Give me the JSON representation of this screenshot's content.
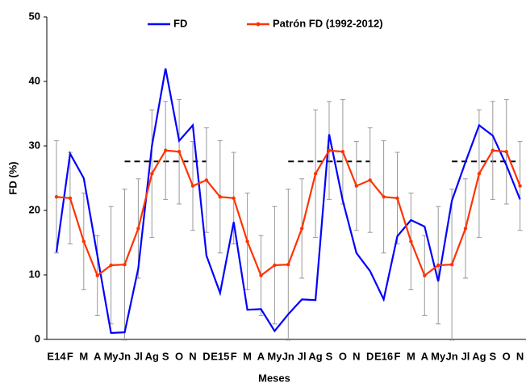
{
  "chart_data": {
    "type": "line",
    "x_label": "Meses",
    "y_label": "FD (%)",
    "categories": [
      "E14",
      "F",
      "M",
      "A",
      "My",
      "Jn",
      "Jl",
      "Ag",
      "S",
      "O",
      "N",
      "D",
      "E15",
      "F",
      "M",
      "A",
      "My",
      "Jn",
      "Jl",
      "Ag",
      "S",
      "O",
      "N",
      "D",
      "E16",
      "F",
      "M",
      "A",
      "My",
      "Jn",
      "Jl",
      "Ag",
      "S",
      "O",
      "N"
    ],
    "ylim": [
      0,
      50
    ],
    "yticks": [
      0,
      10,
      20,
      30,
      40,
      50
    ],
    "legend": "top",
    "series": [
      {
        "name": "FD",
        "color": "#0000ff",
        "values": [
          13.5,
          28.8,
          25,
          13,
          1.0,
          1.1,
          11,
          30,
          42,
          30.8,
          33.2,
          13,
          7.2,
          18.2,
          4.6,
          4.7,
          1.3,
          3.9,
          6.2,
          6.1,
          31.8,
          21.5,
          13.4,
          10.6,
          6.2,
          16.0,
          18.5,
          17.5,
          9,
          21.5,
          27.5,
          33.2,
          31.6,
          27,
          21.7
        ]
      },
      {
        "name": "Patrón FD (1992-2012)",
        "color": "#ff3300",
        "markers": true,
        "values": [
          22.1,
          21.9,
          15.2,
          9.9,
          11.5,
          11.6,
          17.2,
          25.7,
          29.3,
          29.1,
          23.8,
          24.7,
          22.1,
          21.9,
          15.2,
          9.9,
          11.5,
          11.6,
          17.2,
          25.7,
          29.3,
          29.1,
          23.8,
          24.7,
          22.1,
          21.9,
          15.2,
          9.9,
          11.5,
          11.6,
          17.2,
          25.7,
          29.3,
          29.1,
          23.8
        ],
        "errors": [
          8.7,
          7.1,
          7.5,
          6.2,
          9.1,
          11.7,
          7.7,
          9.9,
          7.6,
          8.1,
          6.9,
          8.1,
          8.7,
          7.1,
          7.5,
          6.2,
          9.1,
          11.7,
          7.7,
          9.9,
          7.6,
          8.1,
          6.9,
          8.1,
          8.7,
          7.1,
          7.5,
          6.2,
          9.1,
          11.7,
          7.7,
          9.9,
          7.6,
          8.1,
          6.9
        ]
      }
    ],
    "reference_lines": [
      {
        "value": 27.6,
        "from": 5,
        "to": 11
      },
      {
        "value": 27.6,
        "from": 17,
        "to": 23
      },
      {
        "value": 27.6,
        "from": 29,
        "to": 34
      }
    ]
  }
}
